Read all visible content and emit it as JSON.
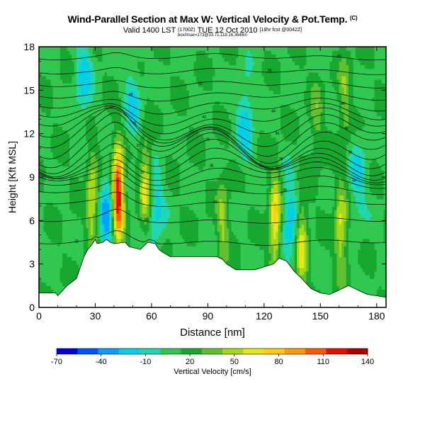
{
  "header": {
    "title": "Wind-Parallel Section at Max W: Vertical Velocity & Pot.Temp.",
    "title_mark": "(C)",
    "valid_main": "Valid 1400 LST",
    "valid_small1": "(1700Z)",
    "valid_date": "TUE 12 Oct 2010",
    "valid_small2": "[18hr fcst @0042Z]",
    "subtitle3": "box/lmax=173@33.71,119.16,3646m"
  },
  "chart_data": {
    "type": "heatmap",
    "xlabel": "Distance [nm]",
    "ylabel": "Height [Kft MSL]",
    "xlim": [
      0,
      185
    ],
    "ylim": [
      0,
      18
    ],
    "x_ticks": [
      0,
      30,
      60,
      90,
      120,
      150,
      180
    ],
    "y_ticks": [
      0,
      3,
      6,
      9,
      12,
      15,
      18
    ],
    "colorbar": {
      "label": "Vertical Velocity [cm/s]",
      "range": [
        -70,
        140
      ],
      "tick_labels": [
        -70,
        -40,
        -10,
        20,
        50,
        80,
        110,
        140
      ],
      "colors": [
        "#0000dd",
        "#0050ff",
        "#00a0ff",
        "#00d0e8",
        "#20d8b0",
        "#30c850",
        "#18a830",
        "#60c030",
        "#a8d818",
        "#e8e818",
        "#ffcc10",
        "#ff9a00",
        "#ff5a00",
        "#e01000",
        "#b00000"
      ]
    },
    "background_w": 12,
    "features": [
      {
        "type": "updraft",
        "x": 42,
        "y": 7.8,
        "w": 140
      },
      {
        "type": "updraft",
        "x": 28.5,
        "y": 7.5,
        "w": 60
      },
      {
        "type": "updraft",
        "x": 57,
        "y": 8.5,
        "w": 65
      },
      {
        "type": "updraft",
        "x": 126,
        "y": 6.0,
        "w": 75
      },
      {
        "type": "updraft",
        "x": 140,
        "y": 4.5,
        "w": 65
      },
      {
        "type": "updraft",
        "x": 161,
        "y": 5.5,
        "w": 60
      },
      {
        "type": "updraft",
        "x": 98,
        "y": 6.0,
        "w": 45
      },
      {
        "type": "updraft",
        "x": 163,
        "y": 14.5,
        "w": 40
      },
      {
        "type": "updraft",
        "x": 148,
        "y": 13.0,
        "w": 35
      },
      {
        "type": "downdraft",
        "x": 37,
        "y": 6.5,
        "w": -40
      },
      {
        "type": "downdraft",
        "x": 62,
        "y": 7.0,
        "w": -20
      },
      {
        "type": "downdraft",
        "x": 134,
        "y": 6.0,
        "w": -25
      },
      {
        "type": "downdraft",
        "x": 24,
        "y": 16.0,
        "w": -20
      },
      {
        "type": "downdraft",
        "x": 50,
        "y": 14.0,
        "w": -15
      },
      {
        "type": "downdraft",
        "x": 110,
        "y": 13.0,
        "w": -20
      },
      {
        "type": "downdraft",
        "x": 170,
        "y": 9.0,
        "w": -15
      }
    ],
    "terrain": {
      "x": [
        0,
        9,
        10,
        15,
        20,
        24,
        26,
        28,
        29,
        30,
        31,
        34,
        36,
        38,
        40,
        46,
        48,
        54,
        58,
        62,
        64,
        66,
        70,
        80,
        90,
        95,
        98,
        100,
        105,
        110,
        115,
        120,
        125,
        128,
        132,
        136,
        140,
        145,
        150,
        155,
        160,
        165,
        170,
        175,
        180,
        185
      ],
      "height": [
        1.0,
        1.0,
        0.8,
        1.5,
        2.0,
        3.5,
        4.0,
        4.3,
        4.5,
        4.7,
        4.4,
        4.5,
        4.7,
        4.5,
        4.4,
        4.5,
        4.2,
        4.0,
        4.5,
        4.4,
        4.0,
        3.8,
        3.5,
        3.5,
        3.5,
        3.5,
        3.3,
        3.0,
        2.6,
        2.6,
        2.6,
        2.8,
        3.0,
        3.4,
        3.2,
        2.5,
        2.0,
        1.3,
        1.0,
        0.9,
        1.2,
        1.5,
        1.2,
        0.9,
        0.8,
        0.7
      ]
    },
    "isentropes": {
      "levels_kft": [
        4.5,
        6.0,
        7.2,
        8.0,
        8.6,
        9.1,
        9.5,
        9.9,
        10.3,
        10.7,
        11.1,
        11.5,
        11.9,
        12.3,
        12.8,
        13.3,
        13.9,
        14.6,
        15.4,
        16.3,
        17.3
      ],
      "label_values": [
        "32",
        "33",
        "33",
        "34",
        "34",
        "35",
        "35",
        "36",
        "36",
        "37",
        "38",
        "39",
        "40",
        "41",
        "43",
        "44",
        "46",
        "48",
        "52",
        "56",
        "60"
      ]
    }
  }
}
